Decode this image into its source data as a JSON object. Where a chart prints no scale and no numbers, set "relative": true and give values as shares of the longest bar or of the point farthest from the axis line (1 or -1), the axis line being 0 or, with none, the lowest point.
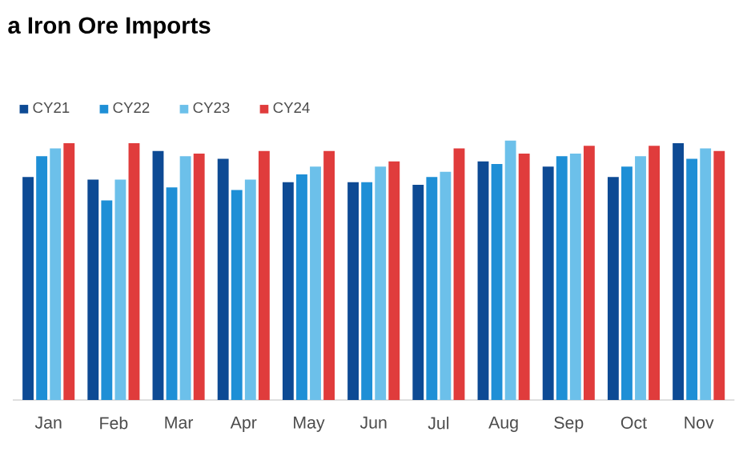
{
  "chart_data": {
    "type": "bar",
    "title": "a Iron Ore Imports",
    "relative": true,
    "legend": "top left",
    "categories": [
      "Jan",
      "Feb",
      "Mar",
      "Apr",
      "May",
      "Jun",
      "Jul",
      "Aug",
      "Sep",
      "Oct",
      "Nov"
    ],
    "series": [
      {
        "name": "CY21",
        "color": "#0d4a94",
        "values": [
          0.86,
          0.85,
          0.96,
          0.93,
          0.84,
          0.84,
          0.83,
          0.92,
          0.9,
          0.86,
          0.99
        ]
      },
      {
        "name": "CY22",
        "color": "#1e8fd6",
        "values": [
          0.94,
          0.77,
          0.82,
          0.81,
          0.87,
          0.84,
          0.86,
          0.91,
          0.94,
          0.9,
          0.93
        ]
      },
      {
        "name": "CY23",
        "color": "#6cc0ea",
        "values": [
          0.97,
          0.85,
          0.94,
          0.85,
          0.9,
          0.9,
          0.88,
          1.0,
          0.95,
          0.94,
          0.97
        ]
      },
      {
        "name": "CY24",
        "color": "#e03c3c",
        "values": [
          0.99,
          0.99,
          0.95,
          0.96,
          0.96,
          0.92,
          0.97,
          0.95,
          0.98,
          0.98,
          0.96
        ]
      }
    ]
  }
}
